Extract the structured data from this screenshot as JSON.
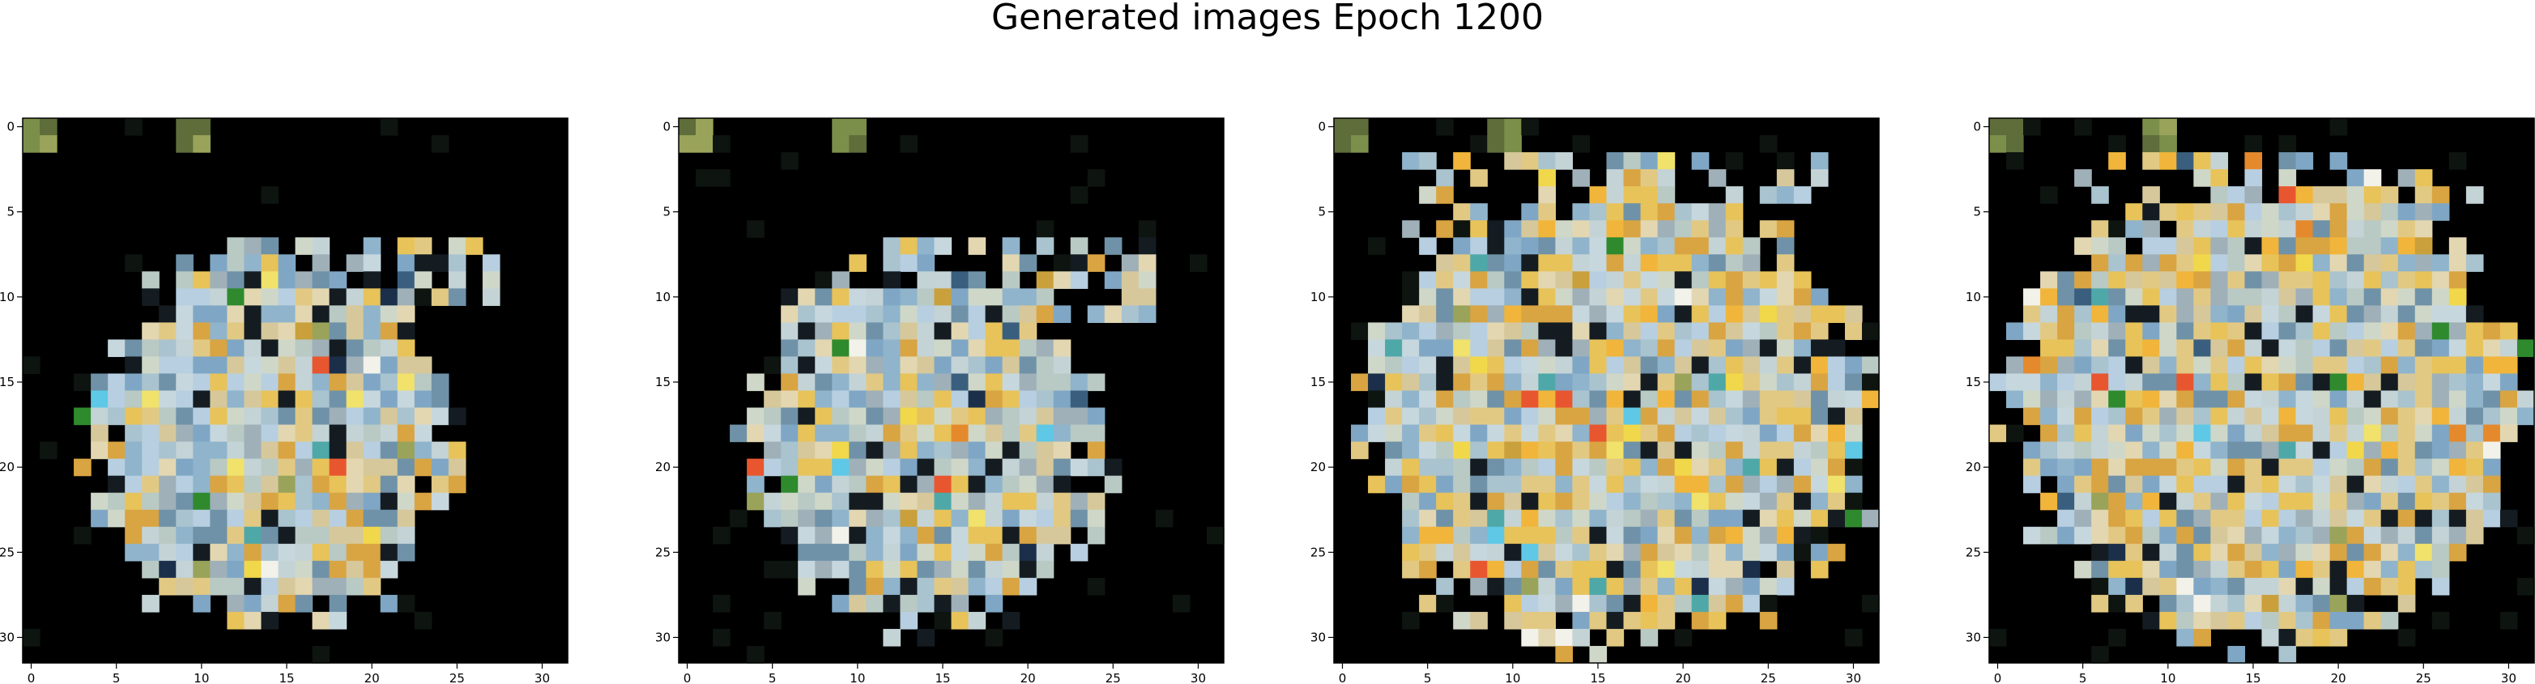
{
  "figure": {
    "title": "Generated images Epoch 1200"
  },
  "chart_data": [
    {
      "type": "heatmap",
      "title": "",
      "xlabel": "",
      "ylabel": "",
      "xlim": [
        -0.5,
        31.5
      ],
      "ylim": [
        31.5,
        -0.5
      ],
      "x_ticks": [
        0,
        5,
        10,
        15,
        20,
        25,
        30
      ],
      "x_tick_labels": [
        "0",
        "5",
        "10",
        "15",
        "20",
        "25",
        "30"
      ],
      "y_ticks": [
        0,
        5,
        10,
        15,
        20,
        25,
        30
      ],
      "y_tick_labels": [
        "0",
        "5",
        "10",
        "15",
        "20",
        "25",
        "30"
      ],
      "grid": false,
      "shape": [
        32,
        32
      ],
      "background_color": "#000000",
      "pixels_note_blob_profile": "sparse"
    },
    {
      "type": "heatmap",
      "title": "",
      "xlabel": "",
      "ylabel": "",
      "xlim": [
        -0.5,
        31.5
      ],
      "ylim": [
        31.5,
        -0.5
      ],
      "x_ticks": [
        0,
        5,
        10,
        15,
        20,
        25,
        30
      ],
      "x_tick_labels": [
        "0",
        "5",
        "10",
        "15",
        "20",
        "25",
        "30"
      ],
      "y_ticks": [
        0,
        5,
        10,
        15,
        20,
        25,
        30
      ],
      "y_tick_labels": [
        "0",
        "5",
        "10",
        "15",
        "20",
        "25",
        "30"
      ],
      "grid": false,
      "shape": [
        32,
        32
      ],
      "background_color": "#000000"
    },
    {
      "type": "heatmap",
      "title": "",
      "xlabel": "",
      "ylabel": "",
      "xlim": [
        -0.5,
        31.5
      ],
      "ylim": [
        31.5,
        -0.5
      ],
      "x_ticks": [
        0,
        5,
        10,
        15,
        20,
        25,
        30
      ],
      "x_tick_labels": [
        "0",
        "5",
        "10",
        "15",
        "20",
        "25",
        "30"
      ],
      "y_ticks": [
        0,
        5,
        10,
        15,
        20,
        25,
        30
      ],
      "y_tick_labels": [
        "0",
        "5",
        "10",
        "15",
        "20",
        "25",
        "30"
      ],
      "grid": false,
      "shape": [
        32,
        32
      ],
      "background_color": "#000000"
    },
    {
      "type": "heatmap",
      "title": "",
      "xlabel": "",
      "ylabel": "",
      "xlim": [
        -0.5,
        31.5
      ],
      "ylim": [
        31.5,
        -0.5
      ],
      "x_ticks": [
        0,
        5,
        10,
        15,
        20,
        25,
        30
      ],
      "x_tick_labels": [
        "0",
        "5",
        "10",
        "15",
        "20",
        "25",
        "30"
      ],
      "y_ticks": [
        0,
        5,
        10,
        15,
        20,
        25,
        30
      ],
      "y_tick_labels": [
        "0",
        "5",
        "10",
        "15",
        "20",
        "25",
        "30"
      ],
      "grid": false,
      "shape": [
        32,
        32
      ],
      "background_color": "#000000"
    }
  ],
  "palette": [
    "#a9c3cf",
    "#8fb4cc",
    "#c4d3d6",
    "#b9c9c4",
    "#cfd8c8",
    "#9fb0b8",
    "#e2c983",
    "#e7c35a",
    "#d9a442",
    "#c7d7de",
    "#7fa7c5",
    "#b7cfe0",
    "#e3d7b1",
    "#d6c89a",
    "#6f92a8"
  ],
  "accents": [
    "#5ec8e6",
    "#f2f2ea",
    "#e8562f",
    "#2f8a2e",
    "#f1d74a",
    "#9aa35a",
    "#1b2f4a",
    "#c9a03c",
    "#3a5f7e",
    "#4fa8a8",
    "#e58a2c",
    "#f0e26a"
  ]
}
